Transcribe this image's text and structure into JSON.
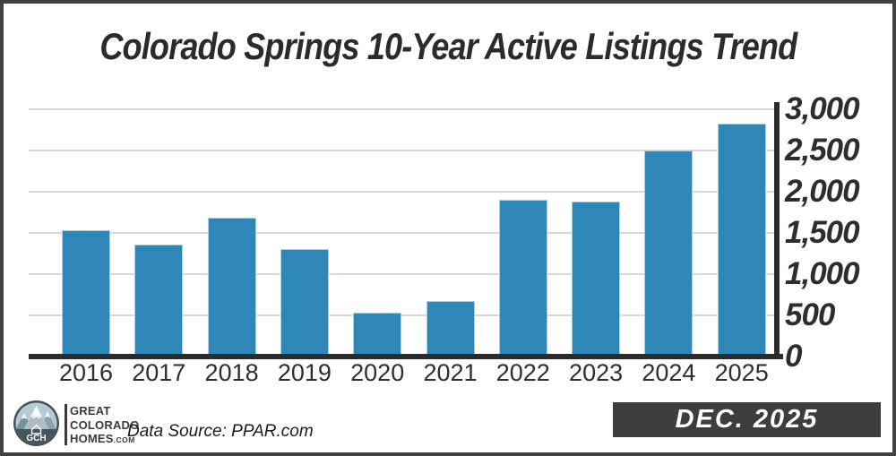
{
  "title": "Colorado Springs 10-Year Active Listings Trend",
  "chart_data": {
    "type": "bar",
    "title": "Colorado Springs 10-Year Active Listings Trend",
    "categories": [
      "2016",
      "2017",
      "2018",
      "2019",
      "2020",
      "2021",
      "2022",
      "2023",
      "2024",
      "2025"
    ],
    "values": [
      1530,
      1360,
      1690,
      1300,
      530,
      670,
      1900,
      1880,
      2500,
      2830
    ],
    "xlabel": "",
    "ylabel": "",
    "ylim": [
      0,
      3000
    ],
    "yticks": [
      {
        "label": "3,000",
        "value": 3000
      },
      {
        "label": "2,500",
        "value": 2500
      },
      {
        "label": "2,000",
        "value": 2000
      },
      {
        "label": "1,500",
        "value": 1500
      },
      {
        "label": "1,000",
        "value": 1000
      },
      {
        "label": "500",
        "value": 500
      },
      {
        "label": "0",
        "value": 0
      }
    ],
    "grid": true,
    "legend": "none",
    "bar_color": "#2f87b7",
    "axis_color": "#2b2b2b",
    "gridline_color": "#d8d8d8"
  },
  "footer": {
    "logo": {
      "initials": "GCH",
      "line1": "GREAT",
      "line2": "COLORADO",
      "line3": "HOMES",
      "tld": ".COM"
    },
    "data_source": "Data Source: PPAR.com",
    "badge_label": "DEC. 2025"
  }
}
